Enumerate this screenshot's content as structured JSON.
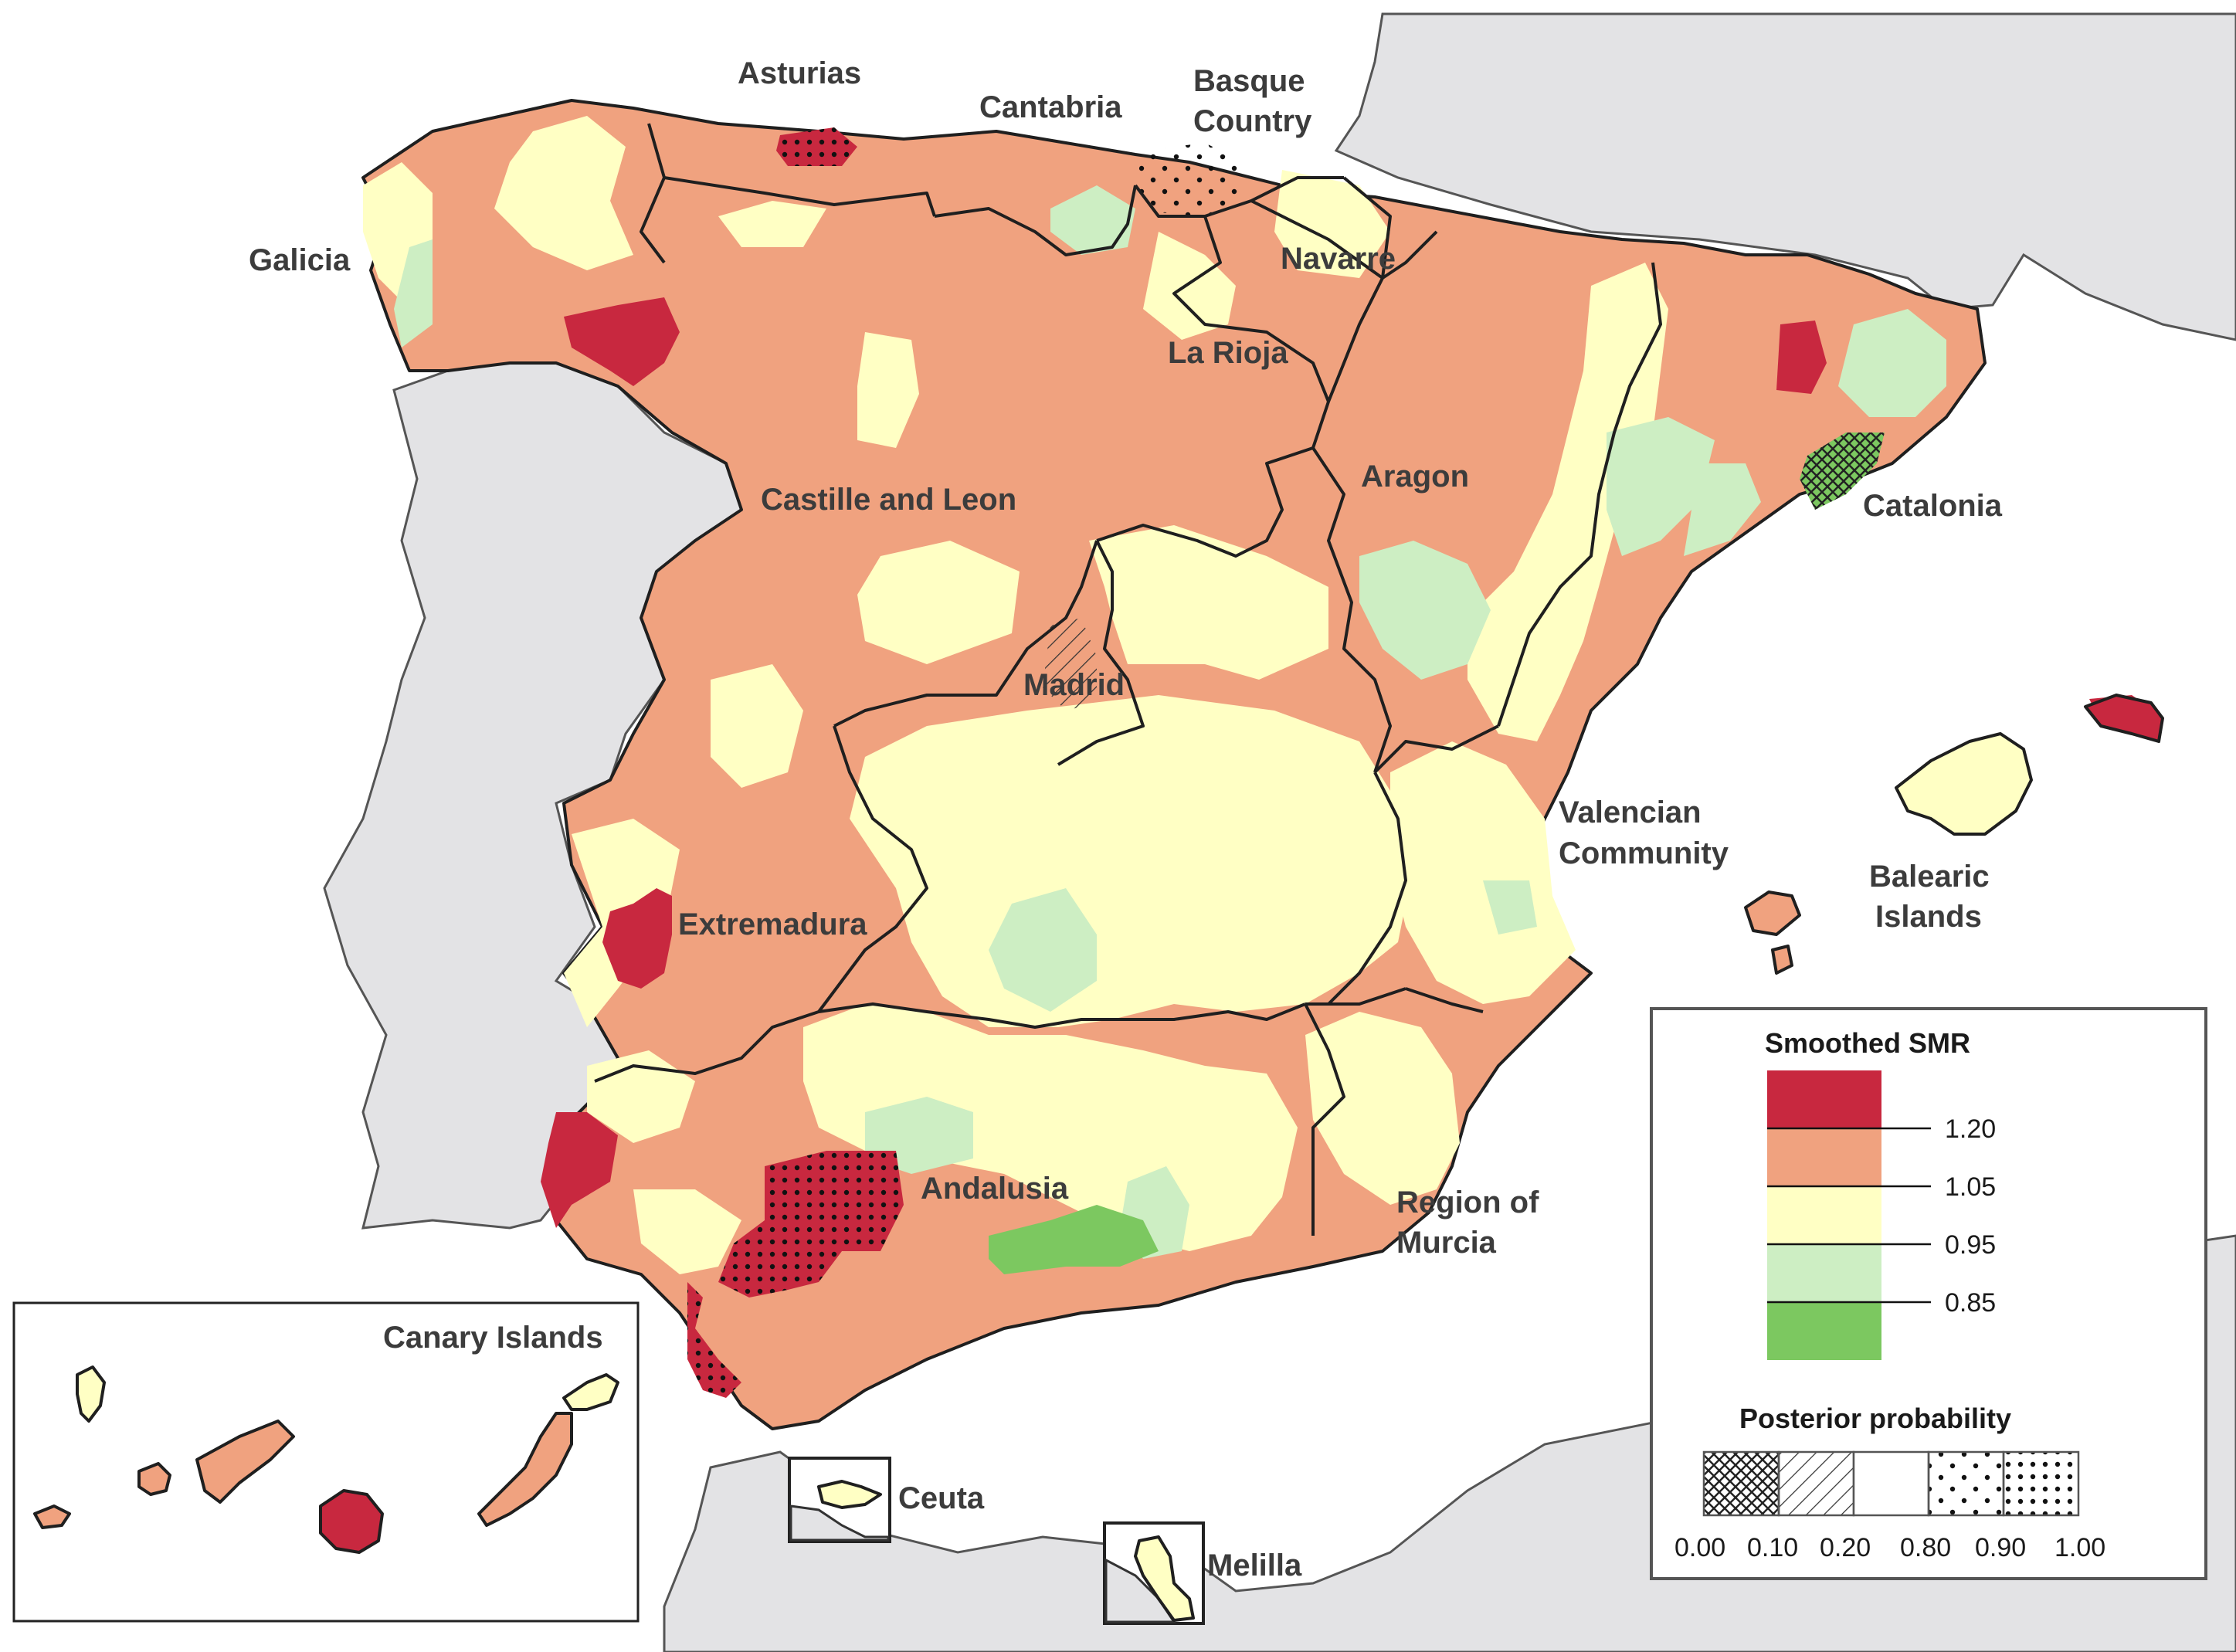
{
  "map": {
    "regions": [
      {
        "name": "Asturias",
        "label": "Asturias"
      },
      {
        "name": "Cantabria",
        "label": "Cantabria"
      },
      {
        "name": "Basque Country",
        "label_line1": "Basque",
        "label_line2": "Country"
      },
      {
        "name": "Galicia",
        "label": "Galicia"
      },
      {
        "name": "Navarre",
        "label": "Navarre"
      },
      {
        "name": "La Rioja",
        "label": "La Rioja"
      },
      {
        "name": "Castille and Leon",
        "label": "Castille and Leon"
      },
      {
        "name": "Aragon",
        "label": "Aragon"
      },
      {
        "name": "Catalonia",
        "label": "Catalonia"
      },
      {
        "name": "Madrid",
        "label": "Madrid"
      },
      {
        "name": "Extremadura",
        "label": "Extremadura"
      },
      {
        "name": "Valencian Community",
        "label_line1": "Valencian",
        "label_line2": "Community"
      },
      {
        "name": "Balearic Islands",
        "label_line1": "Balearic",
        "label_line2": "Islands"
      },
      {
        "name": "Andalusia",
        "label": "Andalusia"
      },
      {
        "name": "Region of Murcia",
        "label_line1": "Region of",
        "label_line2": "Murcia"
      },
      {
        "name": "Canary Islands",
        "label": "Canary Islands"
      },
      {
        "name": "Ceuta",
        "label": "Ceuta"
      },
      {
        "name": "Melilla",
        "label": "Melilla"
      }
    ]
  },
  "legend": {
    "smr_title": "Smoothed SMR",
    "smr_classes": [
      {
        "range": "> 1.20",
        "color": "#c8283f"
      },
      {
        "range": "1.05 - 1.20",
        "color": "#f0a27f"
      },
      {
        "range": "0.95 - 1.05",
        "color": "#ffffc4"
      },
      {
        "range": "0.85 - 0.95",
        "color": "#cdeec3"
      },
      {
        "range": "< 0.85",
        "color": "#7cc860"
      }
    ],
    "smr_breaks": [
      "1.20",
      "1.05",
      "0.95",
      "0.85"
    ],
    "prob_title": "Posterior probability",
    "prob_patterns": [
      "cross-hatch",
      "diagonal-hatch",
      "none",
      "sparse-dots",
      "dense-dots"
    ],
    "prob_breaks": [
      "0.00",
      "0.10",
      "0.20",
      "0.80",
      "0.90",
      "1.00"
    ]
  },
  "colors": {
    "sea": "#ffffff",
    "neighbor_land": "#e3e3e5",
    "very_high": "#c8283f",
    "high": "#f0a27f",
    "average": "#ffffc4",
    "low": "#cdeec3",
    "very_low": "#7cc860"
  }
}
